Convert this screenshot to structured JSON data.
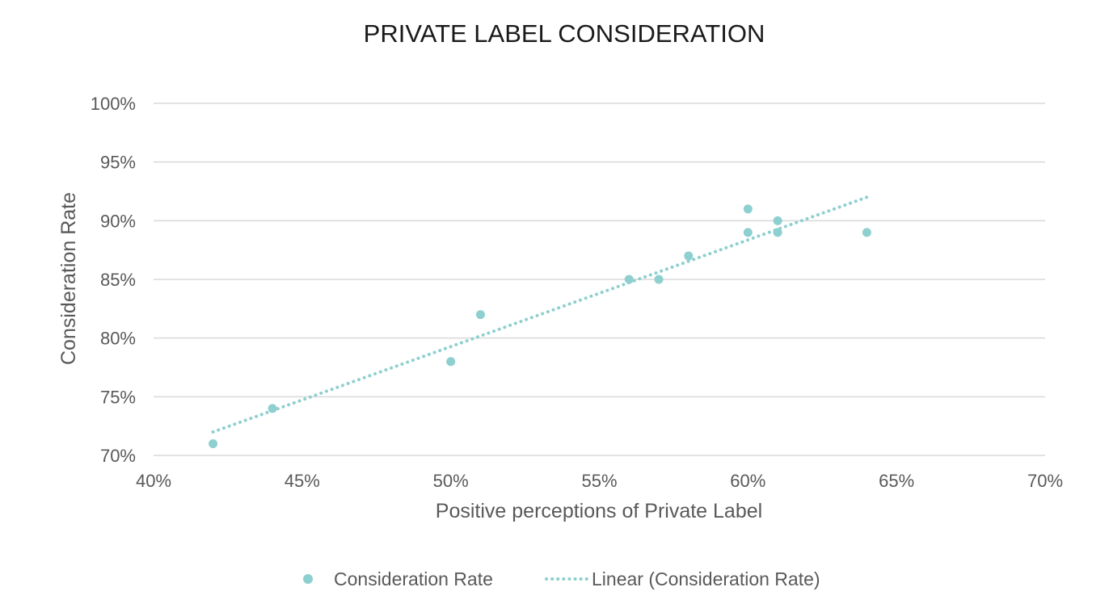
{
  "chart_data": {
    "type": "scatter",
    "title": "PRIVATE LABEL CONSIDERATION",
    "xlabel": "Positive perceptions of Private Label",
    "ylabel": "Consideration Rate",
    "xlim": [
      0.4,
      0.7
    ],
    "ylim": [
      0.7,
      1.0
    ],
    "x_ticks": [
      0.4,
      0.45,
      0.5,
      0.55,
      0.6,
      0.65,
      0.7
    ],
    "y_ticks": [
      0.7,
      0.75,
      0.8,
      0.85,
      0.9,
      0.95,
      1.0
    ],
    "x_tick_labels": [
      "40%",
      "45%",
      "50%",
      "55%",
      "60%",
      "65%",
      "70%"
    ],
    "y_tick_labels": [
      "70%",
      "75%",
      "80%",
      "85%",
      "90%",
      "95%",
      "100%"
    ],
    "grid": "horizontal",
    "legend_position": "bottom",
    "series": [
      {
        "name": "Consideration Rate",
        "color": "#8ecfcf",
        "points": [
          {
            "x": 0.42,
            "y": 0.71
          },
          {
            "x": 0.44,
            "y": 0.74
          },
          {
            "x": 0.5,
            "y": 0.78
          },
          {
            "x": 0.51,
            "y": 0.82
          },
          {
            "x": 0.56,
            "y": 0.85
          },
          {
            "x": 0.57,
            "y": 0.85
          },
          {
            "x": 0.58,
            "y": 0.87
          },
          {
            "x": 0.6,
            "y": 0.91
          },
          {
            "x": 0.6,
            "y": 0.89
          },
          {
            "x": 0.61,
            "y": 0.9
          },
          {
            "x": 0.61,
            "y": 0.89
          },
          {
            "x": 0.64,
            "y": 0.89
          }
        ]
      }
    ],
    "trendline": {
      "name": "Linear (Consideration Rate)",
      "type": "linear",
      "style": "dotted",
      "color": "#8ecfcf",
      "start": {
        "x": 0.42,
        "y": 0.72
      },
      "end": {
        "x": 0.64,
        "y": 0.92
      }
    }
  }
}
